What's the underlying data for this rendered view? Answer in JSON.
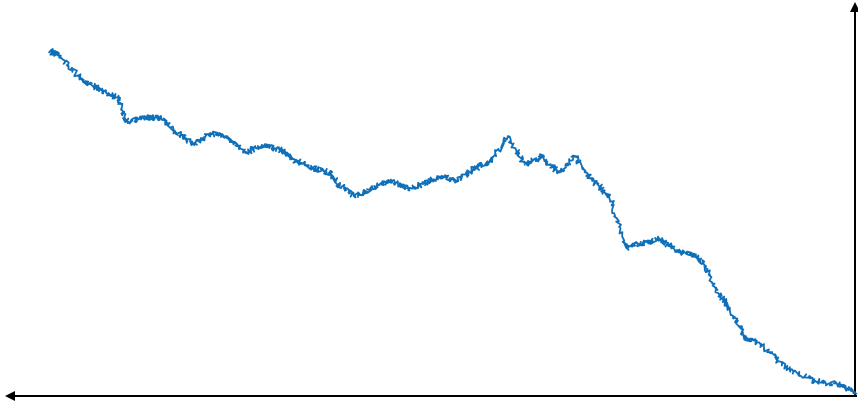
{
  "chart_data": {
    "type": "line",
    "title": "",
    "xlabel": "",
    "ylabel": "",
    "grid": false,
    "legend": "none",
    "axes": "arrows",
    "x_direction": "right-to-left",
    "xlim": [
      0,
      100
    ],
    "ylim": [
      0,
      100
    ],
    "series": [
      {
        "color": "#0f6fb8",
        "style": "noisy-random-walk",
        "x": [
          0,
          2,
          5,
          8,
          11,
          13,
          15,
          16,
          18,
          19,
          21,
          23,
          25,
          27,
          29,
          31,
          33,
          35,
          37,
          39,
          41,
          43,
          45,
          47,
          49,
          51,
          53,
          55,
          57,
          59,
          61,
          62,
          64,
          66,
          68,
          70,
          72,
          74,
          76,
          78,
          80,
          82,
          84,
          86,
          87,
          89,
          91,
          94,
          95
        ],
        "y": [
          1,
          3,
          4,
          7,
          13,
          15,
          23,
          26,
          34,
          36,
          37,
          40,
          39,
          38,
          51,
          55,
          61,
          57,
          61,
          59,
          66,
          60,
          58,
          55,
          56,
          54,
          53,
          55,
          53,
          51,
          54,
          57,
          58,
          60,
          63,
          64,
          62,
          66,
          67,
          64,
          67,
          71,
          71,
          70,
          76,
          78,
          80,
          87,
          88
        ]
      }
    ]
  }
}
